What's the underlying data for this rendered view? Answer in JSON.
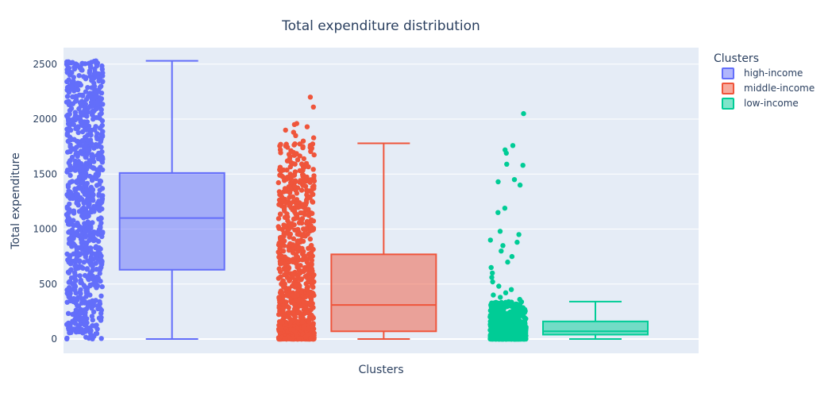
{
  "chart_data": {
    "type": "box",
    "title": "Total expenditure distribution",
    "xlabel": "Clusters",
    "ylabel": "Total expenditure",
    "ylim": [
      -130,
      2650
    ],
    "yticks": [
      0,
      500,
      1000,
      1500,
      2000,
      2500
    ],
    "grid": true,
    "legend": {
      "title": "Clusters",
      "position": "top-right"
    },
    "colors": {
      "plot_bg": "#E5ECF6",
      "grid": "#ffffff",
      "text": "#2a3f5f"
    },
    "series": [
      {
        "name": "high-income",
        "color": "#636EFA",
        "fill": "rgba(99,110,250,0.5)",
        "min": 0,
        "q1": 630,
        "median": 1100,
        "q3": 1510,
        "max": 2530,
        "points": {
          "count": 900,
          "seed": 11,
          "distribution": "uniform",
          "min": 0,
          "max": 2530,
          "outliers": []
        }
      },
      {
        "name": "middle-income",
        "color": "#EF553B",
        "fill": "rgba(239,85,59,0.5)",
        "min": 0,
        "q1": 70,
        "median": 310,
        "q3": 770,
        "max": 1780,
        "points": {
          "count": 900,
          "seed": 23,
          "distribution": "skewed",
          "min": 0,
          "max": 1780,
          "outliers": [
            1800,
            1830,
            1850,
            1880,
            1900,
            1930,
            1950,
            1960,
            2110,
            2200
          ]
        }
      },
      {
        "name": "low-income",
        "color": "#00CC96",
        "fill": "rgba(0,204,150,0.5)",
        "min": 0,
        "q1": 40,
        "median": 70,
        "q3": 160,
        "max": 340,
        "points": {
          "count": 700,
          "seed": 37,
          "distribution": "skewed-strong",
          "min": 0,
          "max": 340,
          "outliers": [
            360,
            380,
            400,
            420,
            450,
            480,
            520,
            560,
            600,
            650,
            700,
            750,
            800,
            850,
            880,
            900,
            950,
            980,
            1150,
            1190,
            1400,
            1430,
            1450,
            1580,
            1590,
            1690,
            1720,
            1760,
            2050
          ]
        }
      }
    ]
  }
}
